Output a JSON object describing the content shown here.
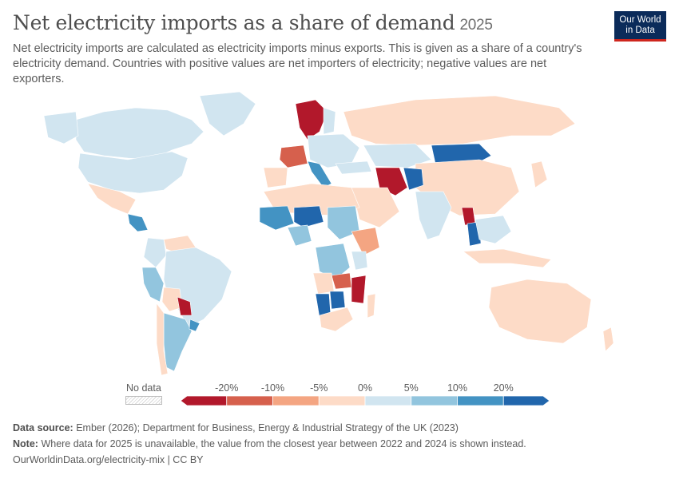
{
  "header": {
    "title": "Net electricity imports as a share of demand",
    "year": "2025",
    "subtitle": "Net electricity imports are calculated as electricity imports minus exports. This is given as a share of a country's electricity demand. Countries with positive values are net importers of electricity; negative values are net exporters."
  },
  "logo": {
    "line1": "Our World",
    "line2": "in Data",
    "colors": {
      "background": "#0b2b5a",
      "accent": "#ce261e"
    }
  },
  "legend": {
    "no_data_label": "No data",
    "ticks": [
      "-20%",
      "-10%",
      "-5%",
      "0%",
      "5%",
      "10%",
      "20%"
    ],
    "bins": [
      {
        "range": "< -20%",
        "color": "#b2182b"
      },
      {
        "range": "-20% to -10%",
        "color": "#d6604d"
      },
      {
        "range": "-10% to -5%",
        "color": "#f4a582"
      },
      {
        "range": "-5% to 0%",
        "color": "#fddbc7"
      },
      {
        "range": "0% to 5%",
        "color": "#d1e5f0"
      },
      {
        "range": "5% to 10%",
        "color": "#92c5de"
      },
      {
        "range": "10% to 20%",
        "color": "#4393c3"
      },
      {
        "range": "> 20%",
        "color": "#2166ac"
      }
    ]
  },
  "map_regions": [
    {
      "region": "Canada",
      "bin": 4
    },
    {
      "region": "Alaska",
      "bin": 4
    },
    {
      "region": "Greenland",
      "bin": 4
    },
    {
      "region": "United States",
      "bin": 4
    },
    {
      "region": "Mexico",
      "bin": 3
    },
    {
      "region": "Central America",
      "bin": 6
    },
    {
      "region": "Venezuela",
      "bin": 3
    },
    {
      "region": "Colombia",
      "bin": 4
    },
    {
      "region": "Peru",
      "bin": 5
    },
    {
      "region": "Brazil",
      "bin": 4
    },
    {
      "region": "Bolivia",
      "bin": 3
    },
    {
      "region": "Paraguay",
      "bin": 0
    },
    {
      "region": "Argentina",
      "bin": 5
    },
    {
      "region": "Chile",
      "bin": 3
    },
    {
      "region": "Uruguay",
      "bin": 6
    },
    {
      "region": "Scandinavia",
      "bin": 0
    },
    {
      "region": "Finland",
      "bin": 4
    },
    {
      "region": "France",
      "bin": 1
    },
    {
      "region": "Spain",
      "bin": 3
    },
    {
      "region": "Italy",
      "bin": 6
    },
    {
      "region": "Eastern Europe",
      "bin": 4
    },
    {
      "region": "Russia",
      "bin": 3
    },
    {
      "region": "Kazakhstan",
      "bin": 4
    },
    {
      "region": "Mongolia",
      "bin": 7
    },
    {
      "region": "China",
      "bin": 3
    },
    {
      "region": "Iran",
      "bin": 0
    },
    {
      "region": "Afghanistan",
      "bin": 7
    },
    {
      "region": "Turkey",
      "bin": 4
    },
    {
      "region": "Arabia",
      "bin": 3
    },
    {
      "region": "India",
      "bin": 4
    },
    {
      "region": "Laos",
      "bin": 0
    },
    {
      "region": "Thailand",
      "bin": 7
    },
    {
      "region": "Southeast Asia",
      "bin": 4
    },
    {
      "region": "Indonesia",
      "bin": 3
    },
    {
      "region": "Japan",
      "bin": 3
    },
    {
      "region": "Australia",
      "bin": 3
    },
    {
      "region": "New Zealand",
      "bin": 3
    },
    {
      "region": "North Africa",
      "bin": 3
    },
    {
      "region": "Mali",
      "bin": 6
    },
    {
      "region": "Niger",
      "bin": 7
    },
    {
      "region": "Nigeria",
      "bin": 5
    },
    {
      "region": "Sudan",
      "bin": 5
    },
    {
      "region": "Ethiopia",
      "bin": 2
    },
    {
      "region": "DR Congo",
      "bin": 5
    },
    {
      "region": "Kenya",
      "bin": 4
    },
    {
      "region": "Zambia",
      "bin": 1
    },
    {
      "region": "Mozambique",
      "bin": 0
    },
    {
      "region": "Angola",
      "bin": 3
    },
    {
      "region": "Namibia",
      "bin": 7
    },
    {
      "region": "Botswana",
      "bin": 7
    },
    {
      "region": "South Africa",
      "bin": 3
    },
    {
      "region": "Madagascar",
      "bin": 3
    }
  ],
  "footer": {
    "source_label": "Data source:",
    "source_text": "Ember (2026); Department for Business, Energy & Industrial Strategy of the UK (2023)",
    "note_label": "Note:",
    "note_text": "Where data for 2025 is unavailable, the value from the closest year between 2022 and 2024 is shown instead.",
    "url": "OurWorldinData.org/electricity-mix | CC BY"
  }
}
